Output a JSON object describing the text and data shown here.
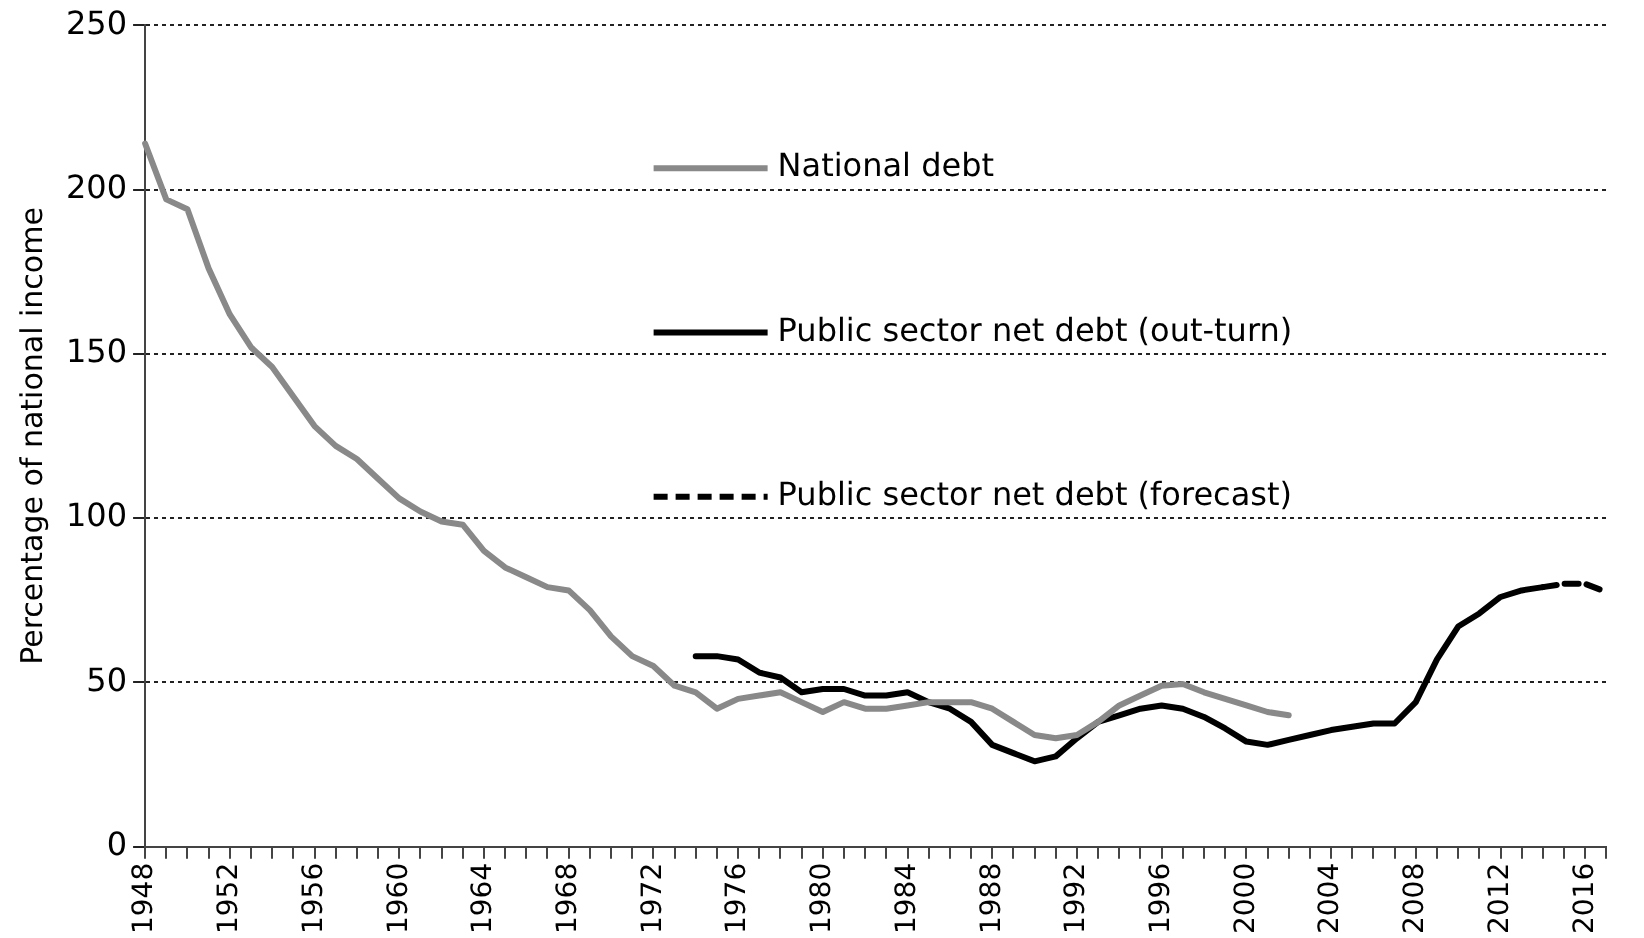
{
  "chart_data": {
    "type": "line",
    "ylabel": "Percentage of national income",
    "categories": [
      "1948",
      null,
      null,
      null,
      "1952",
      null,
      null,
      null,
      "1956",
      null,
      null,
      null,
      "1960",
      null,
      null,
      null,
      "1964",
      null,
      null,
      null,
      "1968",
      null,
      null,
      null,
      "1972",
      null,
      null,
      null,
      "1976",
      null,
      null,
      null,
      "1980",
      null,
      null,
      null,
      "1984",
      null,
      null,
      null,
      "1988",
      null,
      null,
      null,
      "1992",
      null,
      null,
      null,
      "1996",
      null,
      null,
      null,
      "2000",
      null,
      null,
      null,
      "2004",
      null,
      null,
      null,
      "2008",
      null,
      null,
      null,
      "2012",
      null,
      null,
      null,
      "2016",
      null
    ],
    "series": [
      {
        "name": "National debt",
        "color": "#898989",
        "line_style": "solid",
        "values": [
          214,
          197,
          194,
          176,
          162,
          152,
          146,
          137,
          128,
          122,
          118,
          112,
          106,
          102,
          99,
          98,
          90,
          85,
          82,
          79,
          78,
          72,
          64,
          58,
          55,
          49,
          47,
          42,
          45,
          46,
          47,
          44,
          41,
          44,
          42,
          42,
          43,
          44,
          44,
          44,
          42,
          38,
          34,
          33,
          34,
          38,
          43,
          46,
          49,
          49.5,
          47,
          45,
          43,
          41,
          40,
          null,
          null,
          null,
          null,
          null,
          null,
          null,
          null,
          null,
          null,
          null,
          null,
          null,
          null,
          null
        ]
      },
      {
        "name": "Public sector net debt (out-turn)",
        "color": "#000000",
        "line_style": "solid",
        "values": [
          null,
          null,
          null,
          null,
          null,
          null,
          null,
          null,
          null,
          null,
          null,
          null,
          null,
          null,
          null,
          null,
          null,
          null,
          null,
          null,
          null,
          null,
          null,
          null,
          null,
          null,
          58,
          58,
          57,
          53,
          51.5,
          47,
          48,
          48,
          46,
          46,
          47,
          44,
          42,
          38,
          31,
          28.5,
          26,
          27.5,
          33,
          38,
          40,
          42,
          43,
          42,
          39.5,
          36,
          32,
          31,
          32.5,
          34,
          35.5,
          36.5,
          37.5,
          37.5,
          44,
          57,
          67,
          71,
          76,
          78,
          79,
          null,
          null,
          null
        ]
      },
      {
        "name": "Public sector net debt (forecast)",
        "color": "#000000",
        "line_style": "dashed",
        "values": [
          null,
          null,
          null,
          null,
          null,
          null,
          null,
          null,
          null,
          null,
          null,
          null,
          null,
          null,
          null,
          null,
          null,
          null,
          null,
          null,
          null,
          null,
          null,
          null,
          null,
          null,
          null,
          null,
          null,
          null,
          null,
          null,
          null,
          null,
          null,
          null,
          null,
          null,
          null,
          null,
          null,
          null,
          null,
          null,
          null,
          null,
          null,
          null,
          null,
          null,
          null,
          null,
          null,
          null,
          null,
          null,
          null,
          null,
          null,
          null,
          null,
          null,
          null,
          null,
          null,
          null,
          79,
          80,
          80,
          77.5
        ]
      }
    ],
    "ylim": [
      0,
      250
    ],
    "yticks": [
      0,
      50,
      100,
      150,
      200,
      250
    ],
    "grid": "y",
    "legend": "top right",
    "marker": "none"
  }
}
